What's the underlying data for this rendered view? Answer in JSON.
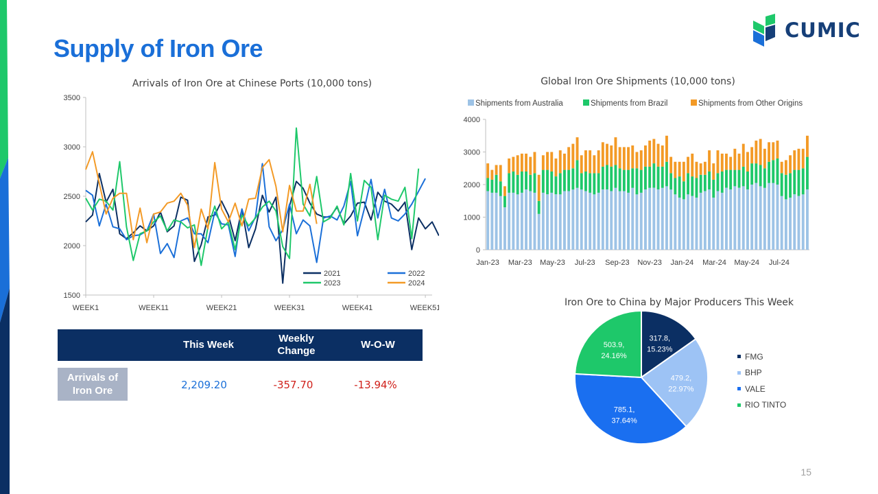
{
  "page": {
    "title": "Supply of Iron Ore",
    "logo_text": "CUMIC",
    "page_number": "15",
    "colors": {
      "title": "#1a6fd8",
      "table_header": "#0b2f63",
      "accent_green": "#1ec86a",
      "accent_navy": "#0b2f63"
    }
  },
  "table": {
    "headers": [
      "This Week",
      "Weekly\nChange",
      "W-O-W"
    ],
    "row_label": "Arrivals of Iron Ore",
    "this_week": "2,209.20",
    "weekly_change": "-357.70",
    "wow": "-13.94%"
  },
  "chart_data": [
    {
      "type": "line",
      "title": "Arrivals of Iron Ore at Chinese Ports (10,000 tons)",
      "x_tick_labels": [
        "WEEK1",
        "WEEK11",
        "WEEK21",
        "WEEK31",
        "WEEK41",
        "WEEK51"
      ],
      "x_tick_weeks": [
        1,
        11,
        21,
        31,
        41,
        51
      ],
      "x_range": [
        1,
        52
      ],
      "ylim": [
        1500,
        3500
      ],
      "y_ticks": [
        1500,
        2000,
        2500,
        3000,
        3500
      ],
      "legend": "inside-bottom-right",
      "series": [
        {
          "name": "2021",
          "color": "#0b2f63",
          "values": [
            2240,
            2310,
            2730,
            2440,
            2570,
            2120,
            2070,
            2130,
            2200,
            2150,
            2200,
            2340,
            2140,
            2200,
            2490,
            2460,
            1840,
            2010,
            2290,
            2310,
            2450,
            2310,
            2050,
            2370,
            1980,
            2170,
            2510,
            2340,
            2490,
            1620,
            2400,
            2650,
            2580,
            2430,
            2320,
            2290,
            2290,
            2390,
            2220,
            2300,
            2430,
            2440,
            2260,
            2540,
            2450,
            2420,
            2350,
            2440,
            1960,
            2280,
            2170,
            2240,
            2100
          ]
        },
        {
          "name": "2022",
          "color": "#1a6fd8",
          "values": [
            2560,
            2510,
            2200,
            2420,
            2190,
            2170,
            2060,
            2100,
            2110,
            2150,
            2320,
            1920,
            2020,
            1880,
            2250,
            2280,
            2120,
            2120,
            2030,
            2340,
            2220,
            2210,
            1890,
            2370,
            2150,
            2290,
            2830,
            2190,
            2050,
            2160,
            2420,
            2120,
            2260,
            2200,
            1830,
            2280,
            2300,
            2260,
            2400,
            2650,
            2100,
            2370,
            2670,
            2280,
            2570,
            2280,
            2250,
            2320,
            2420,
            2550,
            2680
          ]
        },
        {
          "name": "2023",
          "color": "#1ec86a",
          "values": [
            2480,
            2360,
            2470,
            2450,
            2360,
            2850,
            2190,
            1850,
            2120,
            2150,
            2240,
            2300,
            2150,
            2260,
            2240,
            2180,
            2210,
            1800,
            2190,
            2400,
            2170,
            2240,
            1960,
            2310,
            2200,
            2280,
            2390,
            2450,
            2350,
            1990,
            1870,
            3190,
            2420,
            2300,
            2700,
            2240,
            2280,
            2400,
            2210,
            2730,
            2250,
            2660,
            2590,
            2060,
            2510,
            2470,
            2450,
            2590,
            2070,
            2780
          ]
        },
        {
          "name": "2024",
          "color": "#f39a26",
          "values": [
            2770,
            2950,
            2630,
            2320,
            2480,
            2530,
            2530,
            2060,
            2380,
            2030,
            2320,
            2340,
            2430,
            2450,
            2530,
            2410,
            1980,
            2370,
            2170,
            2840,
            2370,
            2240,
            2430,
            2200,
            2470,
            2480,
            2790,
            2870,
            2600,
            2140,
            2610,
            2350,
            2350,
            2620,
            2220
          ]
        }
      ]
    },
    {
      "type": "bar",
      "stacked": true,
      "title": "Global Iron Ore Shipments (10,000 tons)",
      "ylim": [
        0,
        4000
      ],
      "y_ticks": [
        0,
        1000,
        2000,
        3000,
        4000
      ],
      "x_tick_labels": [
        "Jan-23",
        "Mar-23",
        "May-23",
        "Jul-23",
        "Sep-23",
        "Nov-23",
        "Jan-24",
        "Mar-24",
        "May-24",
        "Jul-24"
      ],
      "legend": "top",
      "series": [
        {
          "name": "Shipments from Australia",
          "color": "#9dc3e6",
          "values": [
            1800,
            1750,
            1750,
            1650,
            1300,
            1750,
            1750,
            1700,
            1750,
            1850,
            1800,
            1750,
            1100,
            1750,
            1700,
            1750,
            1700,
            1700,
            1800,
            1800,
            1850,
            1900,
            1850,
            1800,
            1750,
            1700,
            1750,
            1850,
            1850,
            1800,
            1900,
            1800,
            1800,
            1750,
            1900,
            1700,
            1750,
            1850,
            1900,
            1900,
            1850,
            1900,
            1950,
            1850,
            1700,
            1600,
            1550,
            1700,
            1650,
            1600,
            1750,
            1800,
            1850,
            1600,
            1800,
            1750,
            1900,
            1850,
            1950,
            1900,
            1950,
            1850,
            2000,
            2050,
            1950,
            1900,
            2050,
            2050,
            2000,
            1650,
            1550,
            1600,
            1700,
            1650,
            1700,
            1850
          ]
        },
        {
          "name": "Shipments from Brazil",
          "color": "#1ec86a",
          "values": [
            400,
            400,
            550,
            450,
            350,
            600,
            650,
            600,
            650,
            550,
            500,
            600,
            400,
            700,
            750,
            650,
            550,
            650,
            650,
            650,
            650,
            850,
            500,
            600,
            600,
            650,
            600,
            700,
            750,
            750,
            700,
            700,
            650,
            700,
            600,
            800,
            700,
            700,
            650,
            750,
            700,
            650,
            750,
            500,
            500,
            650,
            550,
            650,
            600,
            600,
            550,
            500,
            550,
            550,
            550,
            650,
            550,
            600,
            500,
            550,
            600,
            550,
            650,
            600,
            650,
            600,
            650,
            700,
            800,
            700,
            750,
            750,
            750,
            800,
            800,
            1000
          ]
        },
        {
          "name": "Shipments from Other Origins",
          "color": "#f39a26",
          "values": [
            450,
            300,
            300,
            500,
            300,
            450,
            450,
            600,
            550,
            550,
            550,
            650,
            800,
            450,
            550,
            600,
            550,
            700,
            500,
            700,
            750,
            700,
            550,
            650,
            700,
            550,
            700,
            750,
            650,
            650,
            850,
            650,
            700,
            700,
            700,
            500,
            600,
            650,
            800,
            750,
            700,
            650,
            800,
            500,
            500,
            450,
            600,
            500,
            700,
            500,
            350,
            400,
            650,
            500,
            700,
            550,
            500,
            400,
            650,
            500,
            700,
            600,
            500,
            700,
            800,
            600,
            600,
            550,
            550,
            350,
            450,
            550,
            600,
            650,
            600,
            650
          ]
        }
      ]
    },
    {
      "type": "pie",
      "title": "Iron Ore to China by Major Producers This Week",
      "legend": "right",
      "slices": [
        {
          "label": "FMG",
          "value": 317.8,
          "percent": "15.23%",
          "color": "#0b2f63"
        },
        {
          "label": "BHP",
          "value": 479.2,
          "percent": "22.97%",
          "color": "#9dc3f5"
        },
        {
          "label": "VALE",
          "value": 785.1,
          "percent": "37.64%",
          "color": "#1a6ff0"
        },
        {
          "label": "RIO TINTO",
          "value": 503.9,
          "percent": "24.16%",
          "color": "#1ec86a"
        }
      ]
    }
  ]
}
